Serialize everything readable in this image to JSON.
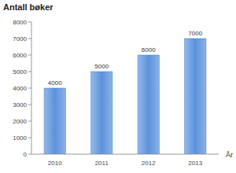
{
  "chart_data": {
    "type": "bar",
    "y_label": "Antall bøker",
    "x_label": "År",
    "categories": [
      "2010",
      "2011",
      "2012",
      "2013"
    ],
    "values": [
      4000,
      5000,
      6000,
      7000
    ],
    "color": "#3f7fd6",
    "ylim": [
      0,
      8000
    ],
    "yticks": [
      0,
      1000,
      2000,
      3000,
      4000,
      5000,
      6000,
      7000,
      8000
    ],
    "grid": false,
    "data_labels": true
  }
}
